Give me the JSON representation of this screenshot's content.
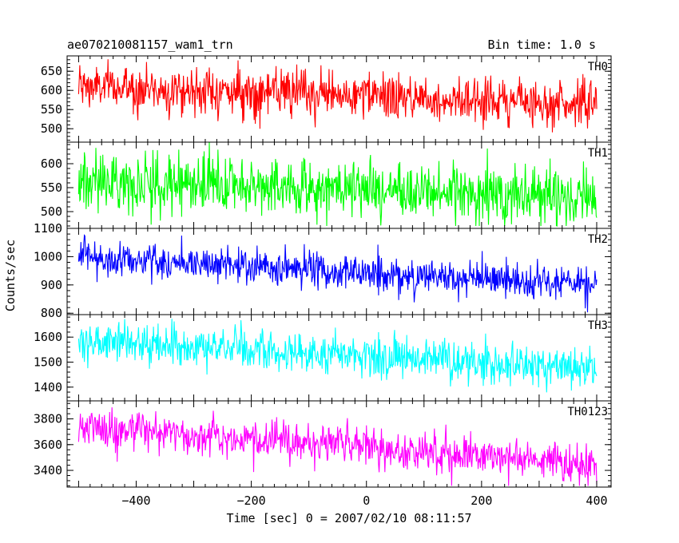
{
  "header": {
    "title": "ae070210081157_wam1_trn",
    "bin_time": "Bin time: 1.0 s"
  },
  "chart_data": {
    "type": "line",
    "layout": "stacked-panels",
    "title": "ae070210081157_wam1_trn",
    "subtitle": "Bin time: 1.0 s",
    "xlabel": "Time [sec] 0 = 2007/02/10 08:11:57",
    "ylabel": "Counts/sec",
    "xlim": [
      -520,
      425
    ],
    "x_ticks": [
      -400,
      -200,
      0,
      200,
      400
    ],
    "x_range_data": [
      -500,
      400
    ],
    "bin_time_s": 1.0,
    "grid": false,
    "panels": [
      {
        "name": "TH0",
        "color": "#ff0000",
        "ylim": [
          465,
          690
        ],
        "y_ticks": [
          500,
          550,
          600,
          650
        ],
        "trend_start": 610,
        "trend_end": 565,
        "scatter": 30,
        "min": 470,
        "max": 690
      },
      {
        "name": "TH1",
        "color": "#00ff00",
        "ylim": [
          465,
          645
        ],
        "y_ticks": [
          500,
          550,
          600
        ],
        "trend_start": 565,
        "trend_end": 530,
        "scatter": 30,
        "min": 470,
        "max": 645
      },
      {
        "name": "TH2",
        "color": "#0000ff",
        "ylim": [
          795,
          1100
        ],
        "y_ticks": [
          800,
          900,
          1000,
          1100
        ],
        "trend_start": 1000,
        "trend_end": 895,
        "scatter": 32,
        "min": 800,
        "max": 1100
      },
      {
        "name": "TH3",
        "color": "#00ffff",
        "ylim": [
          1345,
          1690
        ],
        "y_ticks": [
          1400,
          1500,
          1600
        ],
        "trend_start": 1585,
        "trend_end": 1475,
        "scatter": 40,
        "min": 1345,
        "max": 1690
      },
      {
        "name": "TH0123",
        "color": "#ff00ff",
        "ylim": [
          3270,
          3940
        ],
        "y_ticks": [
          3400,
          3600,
          3800
        ],
        "trend_start": 3740,
        "trend_end": 3450,
        "scatter": 75,
        "min": 3280,
        "max": 3940
      }
    ]
  }
}
